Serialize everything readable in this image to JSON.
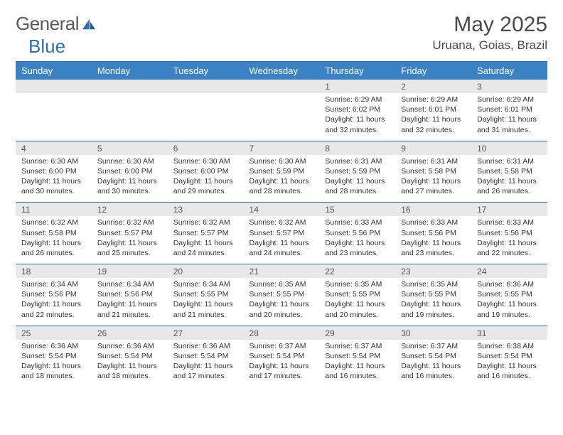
{
  "logo": {
    "text1": "General",
    "text2": "Blue"
  },
  "title": "May 2025",
  "location": "Uruana, Goias, Brazil",
  "colors": {
    "header_bg": "#3b82c4",
    "header_text": "#ffffff",
    "rule": "#2b6fb3",
    "daynum_bg": "#e8e8e8",
    "page_bg": "#ffffff",
    "text": "#333333",
    "logo_gray": "#5a5a5a",
    "logo_blue": "#2b6fb3"
  },
  "dow": [
    "Sunday",
    "Monday",
    "Tuesday",
    "Wednesday",
    "Thursday",
    "Friday",
    "Saturday"
  ],
  "weeks": [
    [
      null,
      null,
      null,
      null,
      {
        "n": "1",
        "sr": "6:29 AM",
        "ss": "6:02 PM",
        "dl": "11 hours and 32 minutes."
      },
      {
        "n": "2",
        "sr": "6:29 AM",
        "ss": "6:01 PM",
        "dl": "11 hours and 32 minutes."
      },
      {
        "n": "3",
        "sr": "6:29 AM",
        "ss": "6:01 PM",
        "dl": "11 hours and 31 minutes."
      }
    ],
    [
      {
        "n": "4",
        "sr": "6:30 AM",
        "ss": "6:00 PM",
        "dl": "11 hours and 30 minutes."
      },
      {
        "n": "5",
        "sr": "6:30 AM",
        "ss": "6:00 PM",
        "dl": "11 hours and 30 minutes."
      },
      {
        "n": "6",
        "sr": "6:30 AM",
        "ss": "6:00 PM",
        "dl": "11 hours and 29 minutes."
      },
      {
        "n": "7",
        "sr": "6:30 AM",
        "ss": "5:59 PM",
        "dl": "11 hours and 28 minutes."
      },
      {
        "n": "8",
        "sr": "6:31 AM",
        "ss": "5:59 PM",
        "dl": "11 hours and 28 minutes."
      },
      {
        "n": "9",
        "sr": "6:31 AM",
        "ss": "5:58 PM",
        "dl": "11 hours and 27 minutes."
      },
      {
        "n": "10",
        "sr": "6:31 AM",
        "ss": "5:58 PM",
        "dl": "11 hours and 26 minutes."
      }
    ],
    [
      {
        "n": "11",
        "sr": "6:32 AM",
        "ss": "5:58 PM",
        "dl": "11 hours and 26 minutes."
      },
      {
        "n": "12",
        "sr": "6:32 AM",
        "ss": "5:57 PM",
        "dl": "11 hours and 25 minutes."
      },
      {
        "n": "13",
        "sr": "6:32 AM",
        "ss": "5:57 PM",
        "dl": "11 hours and 24 minutes."
      },
      {
        "n": "14",
        "sr": "6:32 AM",
        "ss": "5:57 PM",
        "dl": "11 hours and 24 minutes."
      },
      {
        "n": "15",
        "sr": "6:33 AM",
        "ss": "5:56 PM",
        "dl": "11 hours and 23 minutes."
      },
      {
        "n": "16",
        "sr": "6:33 AM",
        "ss": "5:56 PM",
        "dl": "11 hours and 23 minutes."
      },
      {
        "n": "17",
        "sr": "6:33 AM",
        "ss": "5:56 PM",
        "dl": "11 hours and 22 minutes."
      }
    ],
    [
      {
        "n": "18",
        "sr": "6:34 AM",
        "ss": "5:56 PM",
        "dl": "11 hours and 22 minutes."
      },
      {
        "n": "19",
        "sr": "6:34 AM",
        "ss": "5:56 PM",
        "dl": "11 hours and 21 minutes."
      },
      {
        "n": "20",
        "sr": "6:34 AM",
        "ss": "5:55 PM",
        "dl": "11 hours and 21 minutes."
      },
      {
        "n": "21",
        "sr": "6:35 AM",
        "ss": "5:55 PM",
        "dl": "11 hours and 20 minutes."
      },
      {
        "n": "22",
        "sr": "6:35 AM",
        "ss": "5:55 PM",
        "dl": "11 hours and 20 minutes."
      },
      {
        "n": "23",
        "sr": "6:35 AM",
        "ss": "5:55 PM",
        "dl": "11 hours and 19 minutes."
      },
      {
        "n": "24",
        "sr": "6:36 AM",
        "ss": "5:55 PM",
        "dl": "11 hours and 19 minutes."
      }
    ],
    [
      {
        "n": "25",
        "sr": "6:36 AM",
        "ss": "5:54 PM",
        "dl": "11 hours and 18 minutes."
      },
      {
        "n": "26",
        "sr": "6:36 AM",
        "ss": "5:54 PM",
        "dl": "11 hours and 18 minutes."
      },
      {
        "n": "27",
        "sr": "6:36 AM",
        "ss": "5:54 PM",
        "dl": "11 hours and 17 minutes."
      },
      {
        "n": "28",
        "sr": "6:37 AM",
        "ss": "5:54 PM",
        "dl": "11 hours and 17 minutes."
      },
      {
        "n": "29",
        "sr": "6:37 AM",
        "ss": "5:54 PM",
        "dl": "11 hours and 16 minutes."
      },
      {
        "n": "30",
        "sr": "6:37 AM",
        "ss": "5:54 PM",
        "dl": "11 hours and 16 minutes."
      },
      {
        "n": "31",
        "sr": "6:38 AM",
        "ss": "5:54 PM",
        "dl": "11 hours and 16 minutes."
      }
    ]
  ]
}
